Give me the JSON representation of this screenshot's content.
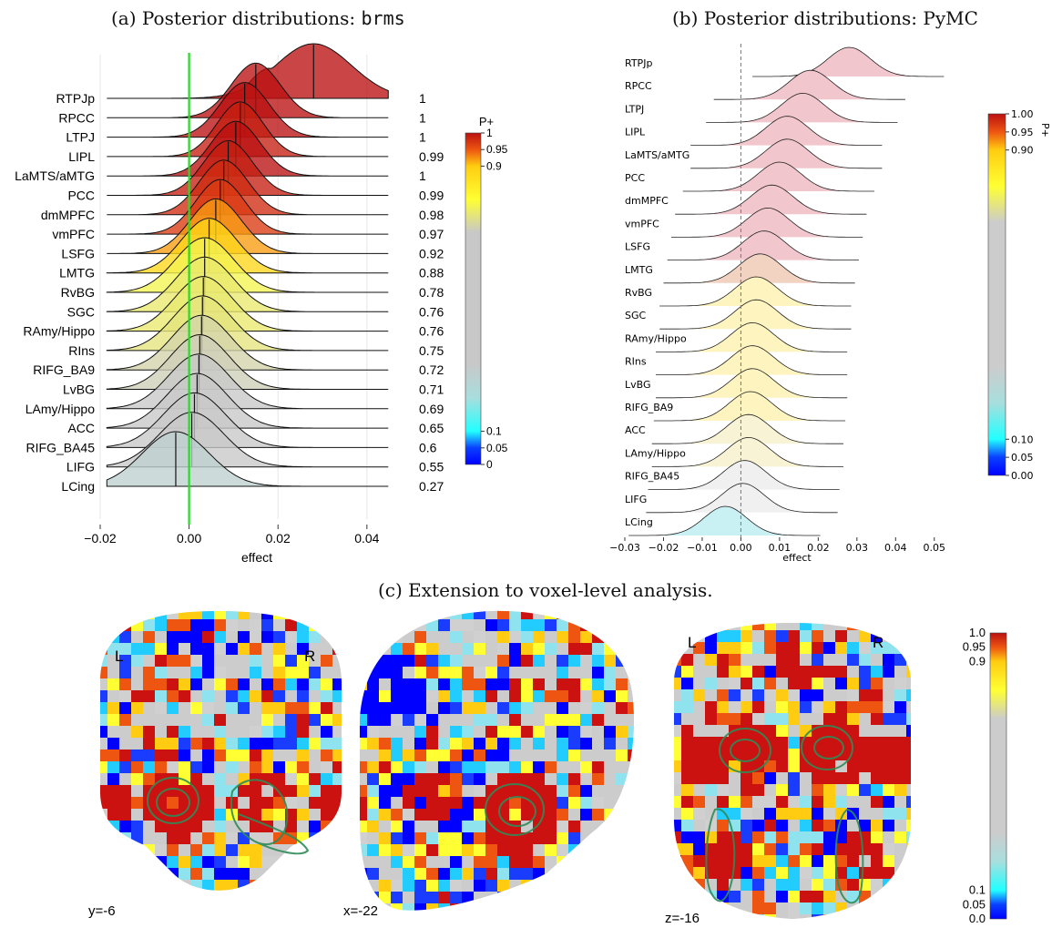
{
  "titles": {
    "a_prefix": "(a) Posterior distributions: ",
    "a_code": "brms",
    "b": "(b) Posterior distributions: PyMC",
    "c": "(c) Extension to voxel-level analysis."
  },
  "chart_data": [
    {
      "type": "ridgeline",
      "panel": "a",
      "xlabel": "effect",
      "xlim": [
        -0.02,
        0.047
      ],
      "xticks": [
        -0.02,
        0.0,
        0.02,
        0.04
      ],
      "xtick_labels": [
        "−0.02",
        "0.00",
        "0.02",
        "0.04"
      ],
      "reference_line": {
        "x": 0.0,
        "color": "#22dd22"
      },
      "colorbar": {
        "title": "P+",
        "tick_labels": [
          "1",
          "0.95",
          "0.9",
          "0.1",
          "0.05",
          "0"
        ],
        "tick_values": [
          1,
          0.95,
          0.9,
          0.1,
          0.05,
          0
        ]
      },
      "regions": [
        "RTPJp",
        "RPCC",
        "LTPJ",
        "LIPL",
        "LaMTS/aMTG",
        "PCC",
        "dmMPFC",
        "vmPFC",
        "LSFG",
        "LMTG",
        "RvBG",
        "SGC",
        "RAmy/Hippo",
        "RIns",
        "RIFG_BA9",
        "LvBG",
        "LAmy/Hippo",
        "ACC",
        "RIFG_BA45",
        "LIFG",
        "LCing"
      ],
      "p_plus_labels": [
        "1",
        "1",
        "1",
        "0.99",
        "1",
        "0.99",
        "0.98",
        "0.97",
        "0.92",
        "0.88",
        "0.78",
        "0.76",
        "0.76",
        "0.75",
        "0.72",
        "0.71",
        "0.69",
        "0.65",
        "0.6",
        "0.55",
        "0.27"
      ],
      "p_plus": [
        1,
        1,
        1,
        0.99,
        1,
        0.99,
        0.98,
        0.97,
        0.92,
        0.88,
        0.78,
        0.76,
        0.76,
        0.75,
        0.72,
        0.71,
        0.69,
        0.65,
        0.6,
        0.55,
        0.27
      ],
      "medians": [
        0.028,
        0.015,
        0.0125,
        0.0115,
        0.0105,
        0.0088,
        0.0078,
        0.007,
        0.006,
        0.0045,
        0.0035,
        0.0035,
        0.0032,
        0.003,
        0.0028,
        0.0024,
        0.0022,
        0.0018,
        0.0012,
        0.0006,
        -0.003
      ],
      "sds": [
        0.0085,
        0.0055,
        0.0055,
        0.0052,
        0.0055,
        0.0055,
        0.0055,
        0.0055,
        0.0058,
        0.0062,
        0.0065,
        0.0065,
        0.0065,
        0.0066,
        0.0066,
        0.0066,
        0.0068,
        0.0068,
        0.007,
        0.0072,
        0.0075
      ]
    },
    {
      "type": "ridgeline",
      "panel": "b",
      "xlabel": "effect",
      "xlim": [
        -0.03,
        0.055
      ],
      "xticks": [
        -0.03,
        -0.02,
        -0.01,
        0.0,
        0.01,
        0.02,
        0.03,
        0.04,
        0.05
      ],
      "xtick_labels": [
        "−0.03",
        "−0.02",
        "−0.01",
        "0.00",
        "0.01",
        "0.02",
        "0.03",
        "0.04",
        "0.05"
      ],
      "colorbar": {
        "title": "P+",
        "tick_labels": [
          "1.00",
          "0.95",
          "0.90",
          "0.10",
          "0.05",
          "0.00"
        ],
        "tick_values": [
          1,
          0.95,
          0.9,
          0.1,
          0.05,
          0
        ]
      },
      "regions": [
        "RTPJp",
        "RPCC",
        "LTPJ",
        "LIPL",
        "LaMTS/aMTG",
        "PCC",
        "dmMPFC",
        "vmPFC",
        "LSFG",
        "LMTG",
        "RvBG",
        "SGC",
        "RAmy/Hippo",
        "RIns",
        "LvBG",
        "RIFG_BA9",
        "ACC",
        "LAmy/Hippo",
        "RIFG_BA45",
        "LIFG",
        "LCing"
      ],
      "medians": [
        0.028,
        0.018,
        0.016,
        0.012,
        0.012,
        0.01,
        0.008,
        0.007,
        0.006,
        0.005,
        0.004,
        0.004,
        0.003,
        0.003,
        0.003,
        0.0025,
        0.002,
        0.002,
        0.001,
        0.0005,
        -0.004
      ],
      "colors": [
        "#f2c6cd",
        "#f2c6cd",
        "#f2c6cd",
        "#f2c6cd",
        "#f2c6cd",
        "#f2c6cd",
        "#f2c6cd",
        "#f2c6cd",
        "#f2c6cd",
        "#f2d3c2",
        "#fdf4c0",
        "#fdf4c0",
        "#fdf4c0",
        "#fdf4c0",
        "#fdf4c0",
        "#fdf4c0",
        "#f8f3d4",
        "#f8f3d4",
        "#f0f0f0",
        "#f0f0f0",
        "#c9f1f3"
      ]
    }
  ],
  "panel_c": {
    "slices": [
      "y=-6",
      "x=-22",
      "z=-16"
    ],
    "orientation_left": "L",
    "orientation_right": "R",
    "colorbar_labels": [
      "1.0",
      "0.95",
      "0.9",
      "0.1",
      "0.05",
      "0.0"
    ]
  }
}
